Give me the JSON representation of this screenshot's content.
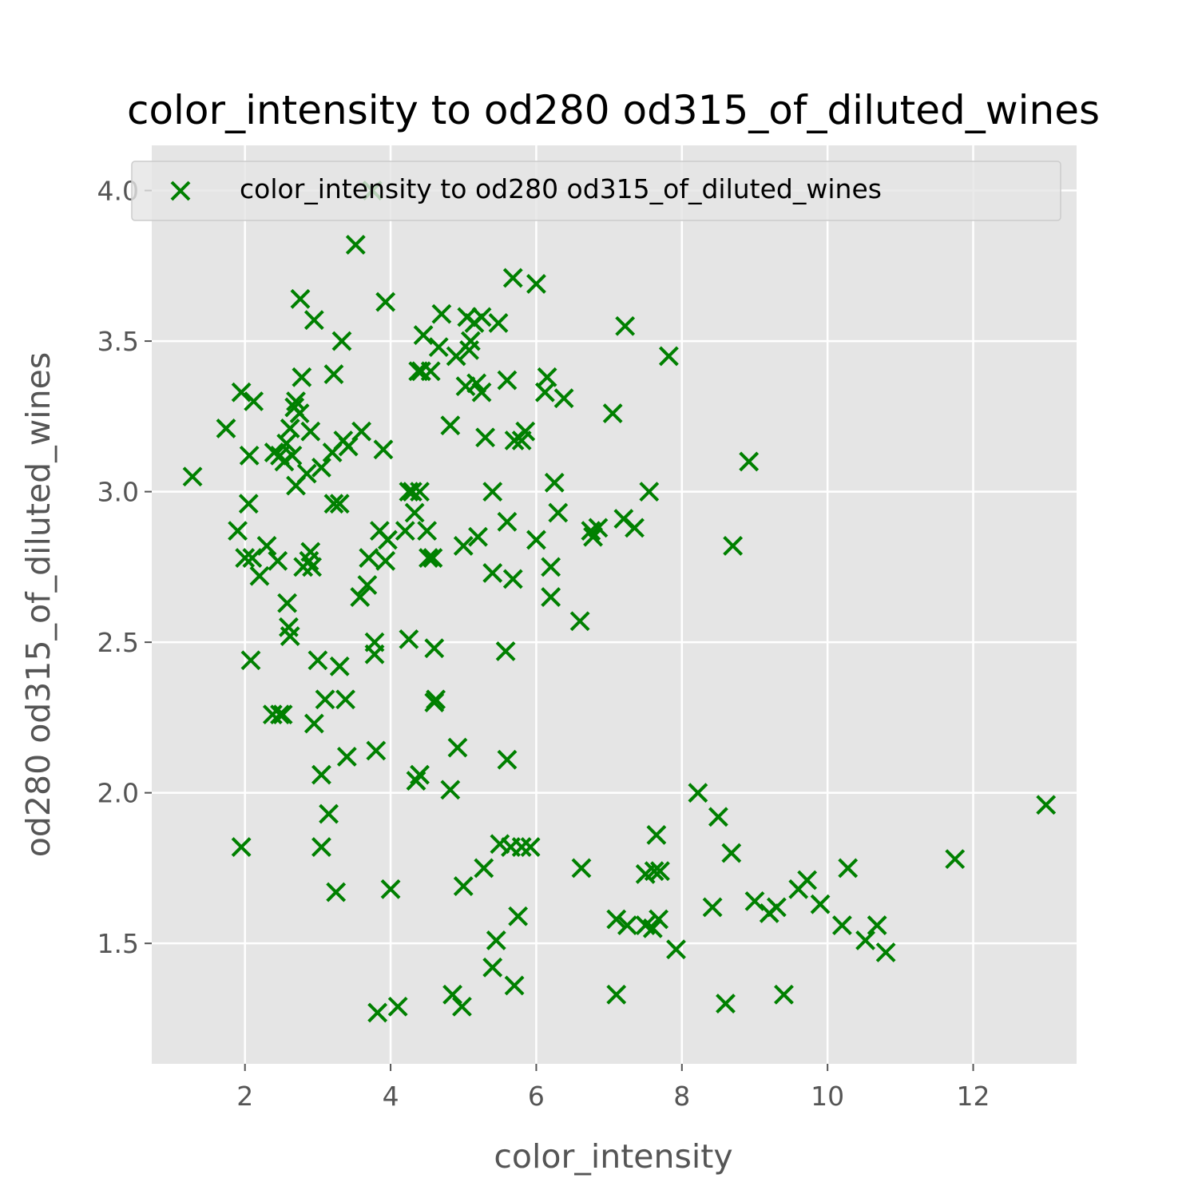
{
  "chart_data": {
    "type": "scatter",
    "title": "color_intensity to od280 od315_of_diluted_wines",
    "xlabel": "color_intensity",
    "ylabel": "od280 od315_of_diluted_wines",
    "xlim": [
      0.72,
      13.42
    ],
    "ylim": [
      1.1,
      4.15
    ],
    "xticks": [
      2,
      4,
      6,
      8,
      10,
      12
    ],
    "yticks": [
      1.5,
      2.0,
      2.5,
      3.0,
      3.5,
      4.0
    ],
    "xtick_labels": [
      "2",
      "4",
      "6",
      "8",
      "10",
      "12"
    ],
    "ytick_labels": [
      "1.5",
      "2.0",
      "2.5",
      "3.0",
      "3.5",
      "4.0"
    ],
    "grid": true,
    "legend_position": "upper-right",
    "marker": "x",
    "colors": {
      "series": "#008000",
      "plot_bg": "#e5e5e5",
      "grid": "#ffffff"
    },
    "series": [
      {
        "name": "color_intensity to od280 od315_of_diluted_wines",
        "points": [
          [
            1.28,
            3.05
          ],
          [
            1.74,
            3.21
          ],
          [
            1.9,
            2.87
          ],
          [
            1.95,
            3.33
          ],
          [
            1.95,
            1.82
          ],
          [
            2.0,
            2.78
          ],
          [
            2.05,
            2.96
          ],
          [
            2.06,
            3.12
          ],
          [
            2.08,
            2.44
          ],
          [
            2.1,
            2.78
          ],
          [
            2.12,
            3.3
          ],
          [
            2.2,
            2.72
          ],
          [
            2.3,
            2.82
          ],
          [
            2.38,
            2.26
          ],
          [
            2.4,
            3.13
          ],
          [
            2.45,
            2.77
          ],
          [
            2.48,
            3.12
          ],
          [
            2.48,
            2.26
          ],
          [
            2.52,
            2.26
          ],
          [
            2.54,
            3.1
          ],
          [
            2.57,
            3.16
          ],
          [
            2.58,
            2.63
          ],
          [
            2.6,
            2.55
          ],
          [
            2.62,
            3.21
          ],
          [
            2.62,
            2.52
          ],
          [
            2.65,
            3.12
          ],
          [
            2.68,
            3.28
          ],
          [
            2.7,
            3.02
          ],
          [
            2.7,
            3.3
          ],
          [
            2.75,
            3.26
          ],
          [
            2.76,
            3.64
          ],
          [
            2.78,
            3.38
          ],
          [
            2.8,
            2.75
          ],
          [
            2.85,
            3.06
          ],
          [
            2.88,
            2.77
          ],
          [
            2.9,
            2.8
          ],
          [
            2.9,
            3.2
          ],
          [
            2.92,
            2.75
          ],
          [
            2.95,
            3.57
          ],
          [
            2.95,
            2.23
          ],
          [
            3.0,
            2.44
          ],
          [
            3.05,
            3.08
          ],
          [
            3.05,
            2.06
          ],
          [
            3.05,
            1.82
          ],
          [
            3.1,
            2.31
          ],
          [
            3.15,
            1.93
          ],
          [
            3.2,
            3.13
          ],
          [
            3.22,
            2.96
          ],
          [
            3.22,
            3.39
          ],
          [
            3.25,
            1.67
          ],
          [
            3.3,
            2.42
          ],
          [
            3.3,
            2.96
          ],
          [
            3.33,
            3.5
          ],
          [
            3.35,
            3.17
          ],
          [
            3.38,
            2.31
          ],
          [
            3.4,
            2.12
          ],
          [
            3.42,
            3.15
          ],
          [
            3.52,
            3.82
          ],
          [
            3.58,
            2.65
          ],
          [
            3.6,
            3.2
          ],
          [
            3.68,
            2.69
          ],
          [
            3.7,
            2.78
          ],
          [
            3.75,
            4.0
          ],
          [
            3.78,
            2.5
          ],
          [
            3.78,
            2.46
          ],
          [
            3.8,
            2.14
          ],
          [
            3.82,
            1.27
          ],
          [
            3.85,
            2.87
          ],
          [
            3.9,
            3.14
          ],
          [
            3.93,
            2.77
          ],
          [
            3.93,
            3.63
          ],
          [
            3.96,
            2.84
          ],
          [
            4.0,
            1.68
          ],
          [
            4.1,
            1.29
          ],
          [
            4.2,
            2.87
          ],
          [
            4.25,
            2.51
          ],
          [
            4.25,
            3.0
          ],
          [
            4.3,
            3.0
          ],
          [
            4.33,
            2.93
          ],
          [
            4.35,
            2.04
          ],
          [
            4.38,
            3.4
          ],
          [
            4.4,
            2.06
          ],
          [
            4.4,
            3.0
          ],
          [
            4.42,
            3.4
          ],
          [
            4.45,
            3.52
          ],
          [
            4.5,
            2.87
          ],
          [
            4.52,
            2.78
          ],
          [
            4.55,
            3.4
          ],
          [
            4.58,
            2.78
          ],
          [
            4.6,
            2.3
          ],
          [
            4.6,
            2.48
          ],
          [
            4.62,
            2.31
          ],
          [
            4.66,
            3.48
          ],
          [
            4.7,
            3.59
          ],
          [
            4.82,
            3.22
          ],
          [
            4.82,
            2.01
          ],
          [
            4.85,
            1.33
          ],
          [
            4.9,
            3.45
          ],
          [
            4.92,
            2.15
          ],
          [
            4.98,
            1.29
          ],
          [
            5.0,
            1.69
          ],
          [
            5.0,
            2.82
          ],
          [
            5.03,
            3.35
          ],
          [
            5.05,
            3.58
          ],
          [
            5.08,
            3.47
          ],
          [
            5.1,
            3.5
          ],
          [
            5.15,
            3.56
          ],
          [
            5.18,
            3.36
          ],
          [
            5.2,
            2.85
          ],
          [
            5.25,
            3.58
          ],
          [
            5.25,
            3.33
          ],
          [
            5.28,
            1.75
          ],
          [
            5.3,
            3.18
          ],
          [
            5.4,
            3.0
          ],
          [
            5.4,
            2.73
          ],
          [
            5.4,
            1.42
          ],
          [
            5.45,
            1.51
          ],
          [
            5.48,
            3.56
          ],
          [
            5.5,
            1.83
          ],
          [
            5.58,
            2.47
          ],
          [
            5.6,
            3.37
          ],
          [
            5.6,
            2.9
          ],
          [
            5.6,
            2.11
          ],
          [
            5.65,
            1.82
          ],
          [
            5.68,
            3.71
          ],
          [
            5.68,
            2.71
          ],
          [
            5.7,
            3.17
          ],
          [
            5.7,
            1.36
          ],
          [
            5.75,
            1.59
          ],
          [
            5.8,
            1.82
          ],
          [
            5.8,
            3.17
          ],
          [
            5.85,
            3.2
          ],
          [
            5.92,
            1.82
          ],
          [
            6.0,
            2.84
          ],
          [
            6.0,
            3.69
          ],
          [
            6.12,
            3.33
          ],
          [
            6.15,
            3.38
          ],
          [
            6.2,
            2.75
          ],
          [
            6.2,
            2.65
          ],
          [
            6.25,
            3.03
          ],
          [
            6.3,
            2.93
          ],
          [
            6.38,
            3.31
          ],
          [
            6.6,
            2.57
          ],
          [
            6.62,
            1.75
          ],
          [
            6.75,
            2.87
          ],
          [
            6.78,
            2.85
          ],
          [
            6.85,
            2.88
          ],
          [
            7.05,
            3.26
          ],
          [
            7.1,
            1.58
          ],
          [
            7.1,
            1.33
          ],
          [
            7.2,
            2.91
          ],
          [
            7.22,
            3.55
          ],
          [
            7.25,
            1.56
          ],
          [
            7.35,
            2.88
          ],
          [
            7.5,
            1.56
          ],
          [
            7.5,
            1.73
          ],
          [
            7.55,
            3.0
          ],
          [
            7.6,
            1.55
          ],
          [
            7.62,
            1.74
          ],
          [
            7.65,
            1.86
          ],
          [
            7.68,
            1.58
          ],
          [
            7.7,
            1.74
          ],
          [
            7.82,
            3.45
          ],
          [
            7.92,
            1.48
          ],
          [
            8.22,
            2.0
          ],
          [
            8.42,
            1.62
          ],
          [
            8.5,
            1.92
          ],
          [
            8.6,
            1.3
          ],
          [
            8.68,
            1.8
          ],
          [
            8.7,
            2.82
          ],
          [
            8.92,
            3.1
          ],
          [
            9.0,
            1.64
          ],
          [
            9.2,
            1.6
          ],
          [
            9.3,
            1.62
          ],
          [
            9.4,
            1.33
          ],
          [
            9.6,
            1.68
          ],
          [
            9.72,
            1.71
          ],
          [
            9.9,
            1.63
          ],
          [
            10.2,
            1.56
          ],
          [
            10.28,
            1.75
          ],
          [
            10.52,
            1.51
          ],
          [
            10.68,
            1.56
          ],
          [
            10.8,
            1.47
          ],
          [
            11.75,
            1.78
          ],
          [
            13.0,
            1.96
          ]
        ]
      }
    ]
  }
}
